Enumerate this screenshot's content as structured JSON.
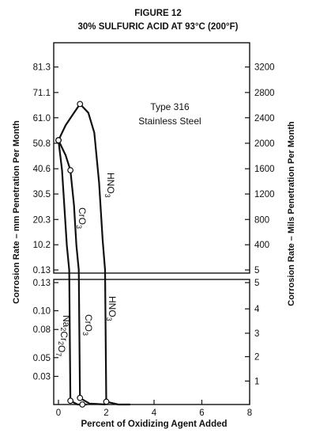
{
  "chart_data": {
    "type": "line",
    "title": "FIGURE 12",
    "subtitle": "30% SULFURIC ACID AT 93°C (200°F)",
    "annotation": [
      "Type 316",
      "Stainless Steel"
    ],
    "xlabel": "Percent of Oxidizing Agent Added",
    "ylabel_left": "Corrosion Rate – mm Penetration Per Month",
    "ylabel_right": "Corrosion Rate – Mils Penetration Per Month",
    "xlim": [
      0,
      8
    ],
    "x_ticks": [
      "0",
      "2",
      "4",
      "6",
      "8"
    ],
    "grid": false,
    "panels": [
      {
        "name": "upper",
        "y_scale": "linear",
        "ylim": [
          0.13,
          91
        ],
        "left_ticks": [
          {
            "value": 0.13,
            "label": "0.13"
          },
          {
            "value": 10.2,
            "label": "10.2"
          },
          {
            "value": 20.3,
            "label": "20.3"
          },
          {
            "value": 30.5,
            "label": "30.5"
          },
          {
            "value": 40.6,
            "label": "40.6"
          },
          {
            "value": 50.8,
            "label": "50.8"
          },
          {
            "value": 61.0,
            "label": "61.0"
          },
          {
            "value": 71.1,
            "label": "71.1"
          },
          {
            "value": 81.3,
            "label": "81.3"
          }
        ],
        "right_ticks": [
          {
            "value": 0.13,
            "label": "5"
          },
          {
            "value": 10.2,
            "label": "400"
          },
          {
            "value": 20.3,
            "label": "800"
          },
          {
            "value": 30.5,
            "label": "1200"
          },
          {
            "value": 40.6,
            "label": "1600"
          },
          {
            "value": 50.8,
            "label": "2000"
          },
          {
            "value": 61.0,
            "label": "2400"
          },
          {
            "value": 71.1,
            "label": "2800"
          },
          {
            "value": 81.3,
            "label": "3200"
          }
        ]
      },
      {
        "name": "lower",
        "y_scale": "linear",
        "ylim": [
          0,
          0.13
        ],
        "left_ticks": [
          {
            "value": 0.03,
            "label": "0.03"
          },
          {
            "value": 0.05,
            "label": "0.05"
          },
          {
            "value": 0.08,
            "label": "0.08"
          },
          {
            "value": 0.1,
            "label": "0.10"
          },
          {
            "value": 0.13,
            "label": "0.13"
          }
        ],
        "right_ticks": [
          {
            "value": 0.025,
            "label": "1"
          },
          {
            "value": 0.051,
            "label": "2"
          },
          {
            "value": 0.076,
            "label": "3"
          },
          {
            "value": 0.102,
            "label": "4"
          },
          {
            "value": 0.13,
            "label": "5"
          }
        ]
      }
    ],
    "series": [
      {
        "name": "HNO3",
        "label_text": "HNO",
        "label_sub": "3",
        "points": [
          [
            0,
            52
          ],
          [
            0.3,
            58
          ],
          [
            0.9,
            66.5
          ],
          [
            1.25,
            63
          ],
          [
            1.5,
            55
          ],
          [
            1.7,
            35
          ],
          [
            1.85,
            12
          ],
          [
            1.95,
            0.13
          ],
          [
            2.0,
            0.003
          ],
          [
            2.5,
            0.0
          ],
          [
            3.0,
            0.0
          ]
        ],
        "markers": [
          [
            0,
            52
          ],
          [
            0.9,
            66.5
          ],
          [
            2.0,
            0.003
          ]
        ]
      },
      {
        "name": "CrO3",
        "label_text": "CrO",
        "label_sub": "3",
        "points": [
          [
            0,
            52
          ],
          [
            0.3,
            46
          ],
          [
            0.5,
            40
          ],
          [
            0.65,
            26
          ],
          [
            0.75,
            10
          ],
          [
            0.85,
            0.13
          ],
          [
            0.9,
            0.007
          ],
          [
            1.3,
            0.001
          ],
          [
            2.0,
            0.0
          ]
        ],
        "markers": [
          [
            0,
            52
          ],
          [
            0.5,
            40
          ],
          [
            0.9,
            0.007
          ]
        ]
      },
      {
        "name": "Na2Cr2O7",
        "label_parts": [
          [
            "Na",
            ""
          ],
          [
            "2",
            "sub"
          ],
          [
            "Cr",
            ""
          ],
          [
            "2",
            "sub"
          ],
          [
            "O",
            ""
          ],
          [
            "7",
            "sub"
          ]
        ],
        "points": [
          [
            0,
            52
          ],
          [
            0.15,
            40
          ],
          [
            0.25,
            25
          ],
          [
            0.35,
            10
          ],
          [
            0.45,
            0.13
          ],
          [
            0.5,
            0.004
          ],
          [
            0.8,
            0.0
          ],
          [
            1.2,
            0.0
          ]
        ],
        "markers": [
          [
            0,
            52
          ],
          [
            0.5,
            0.004
          ],
          [
            1.0,
            0.0
          ]
        ]
      }
    ]
  }
}
